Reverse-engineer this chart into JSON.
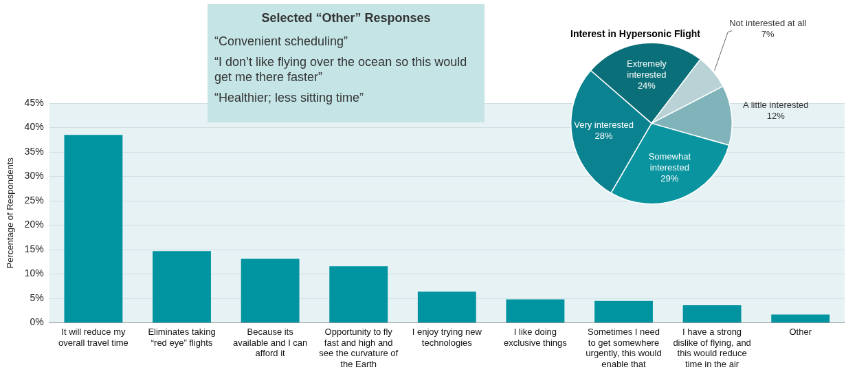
{
  "chart_data": [
    {
      "type": "other",
      "title": "Selected “Other” Responses",
      "annotations": [
        "“Convenient scheduling”",
        "“I don’t like flying over the ocean so this would get me there faster”",
        "“Healthier; less sitting time”"
      ]
    },
    {
      "type": "pie",
      "title": "Interest in Hypersonic Flight",
      "categories": [
        "Extremely interested",
        "Not interested at all",
        "A little interested",
        "Somewhat interested",
        "Very interested"
      ],
      "values": [
        24,
        7,
        12,
        29,
        28
      ],
      "value_labels": [
        "24%",
        "7%",
        "12%",
        "29%",
        "28%"
      ],
      "colors": [
        "#0a6f78",
        "#b8d2d6",
        "#80b4ba",
        "#0a949f",
        "#0b8290"
      ],
      "legend": false
    },
    {
      "type": "bar",
      "ylabel": "Percentage of Respondents",
      "categories": [
        "It will reduce my overall travel time",
        "Eliminates taking “red eye” flights",
        "Because its available and I can afford it",
        "Opportunity to fly fast and high and see the curvature of the Earth",
        "I enjoy trying new technologies",
        "I like doing exclusive things",
        "Sometimes I need to get somewhere urgently, this would enable that",
        "I have a strong dislike of flying, and this would reduce time in the air",
        "Other"
      ],
      "values": [
        38.5,
        14.7,
        13.1,
        11.6,
        6.4,
        4.8,
        4.5,
        3.6,
        1.7
      ],
      "color": "#0093a0",
      "ylim": [
        0,
        45
      ],
      "yticks": [
        {
          "value": 0,
          "label": "0%"
        },
        {
          "value": 5,
          "label": "5%"
        },
        {
          "value": 10,
          "label": "10%"
        },
        {
          "value": 15,
          "label": "15%"
        },
        {
          "value": 20,
          "label": "20%"
        },
        {
          "value": 25,
          "label": "25%"
        },
        {
          "value": 30,
          "label": "30%"
        },
        {
          "value": 35,
          "label": "35%"
        },
        {
          "value": 40,
          "label": "40%"
        },
        {
          "value": 45,
          "label": "45%"
        }
      ],
      "grid": "y",
      "legend": false
    }
  ]
}
